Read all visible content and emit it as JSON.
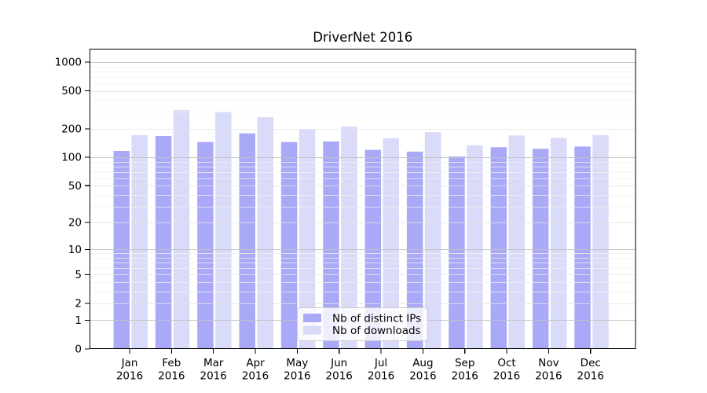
{
  "title": "DriverNet 2016",
  "legend": {
    "items": [
      {
        "label": "Nb of distinct IPs",
        "series": "ips"
      },
      {
        "label": "Nb of downloads",
        "series": "downloads"
      }
    ]
  },
  "colors": {
    "ips_bar": "#a9a9f7",
    "downloads_bar": "#dadaf9",
    "grid_major": "#c2c2c2",
    "grid_mid": "#e4e4e4",
    "grid_minor": "#f1f1f1",
    "spine": "#000000",
    "legend_border": "#cccccc",
    "legend_bg": "rgba(255,255,255,0.8)"
  },
  "chart_data": {
    "type": "bar",
    "title": "DriverNet 2016",
    "xlabel": "",
    "ylabel": "",
    "yscale": "log1p",
    "grid": "both, drawn over bars",
    "legend_position": "lower center",
    "ylim": [
      0,
      1380
    ],
    "y_ticks": [
      0,
      1,
      2,
      5,
      10,
      20,
      50,
      100,
      200,
      500,
      1000
    ],
    "categories": [
      "Jan 2016",
      "Feb 2016",
      "Mar 2016",
      "Apr 2016",
      "May 2016",
      "Jun 2016",
      "Jul 2016",
      "Aug 2016",
      "Sep 2016",
      "Oct 2016",
      "Nov 2016",
      "Dec 2016"
    ],
    "series": [
      {
        "name": "Nb of distinct IPs",
        "values": [
          117,
          168,
          145,
          179,
          145,
          147,
          120,
          115,
          102,
          128,
          123,
          130
        ]
      },
      {
        "name": "Nb of downloads",
        "values": [
          172,
          315,
          299,
          265,
          197,
          211,
          159,
          184,
          134,
          170,
          160,
          172
        ]
      }
    ]
  }
}
